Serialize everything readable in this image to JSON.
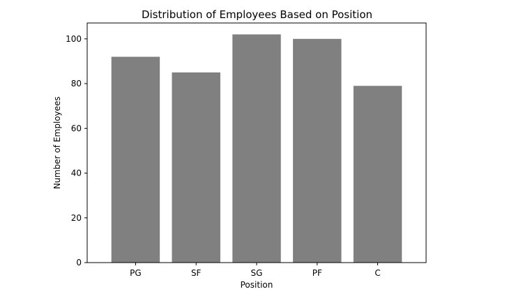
{
  "chart_data": {
    "type": "bar",
    "title": "Distribution of Employees Based on Position",
    "xlabel": "Position",
    "ylabel": "Number of Employees",
    "categories": [
      "PG",
      "SF",
      "SG",
      "PF",
      "C"
    ],
    "values": [
      92,
      85,
      102,
      100,
      79
    ],
    "ylim": [
      0,
      107.1
    ],
    "yticks": [
      0,
      20,
      40,
      60,
      80,
      100
    ],
    "bar_color": "#808080",
    "grid": false,
    "legend": "none"
  }
}
